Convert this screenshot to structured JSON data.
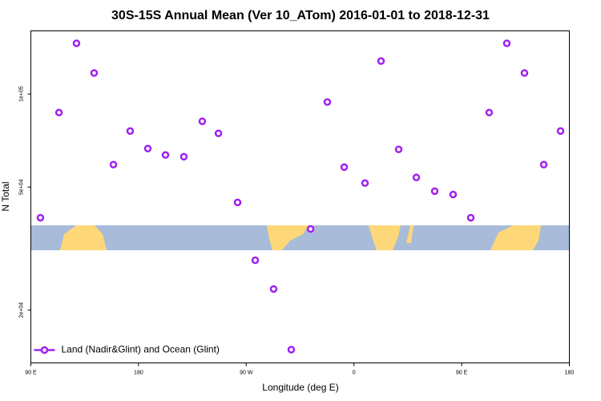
{
  "chart_data": {
    "type": "scatter",
    "title": "30S-15S Annual Mean (Ver 10_ATom)   2016-01-01 to 2018-12-31",
    "x_label": "Longitude (deg E)",
    "y_label": "N Total",
    "log_y": true,
    "legend": "bottom left",
    "xlim": [
      90,
      450
    ],
    "xticks": [
      {
        "value": 90,
        "label": "90 E"
      },
      {
        "value": 162,
        "label": "180"
      },
      {
        "value": 234,
        "label": "90 W"
      },
      {
        "value": 306,
        "label": "0"
      },
      {
        "value": 378,
        "label": "90 E"
      },
      {
        "value": 450,
        "label": "180"
      }
    ],
    "ylim": [
      13500,
      160000
    ],
    "yticks": [
      {
        "value": 20000,
        "label": "2e+04"
      },
      {
        "value": 50000,
        "label": "5e+04"
      },
      {
        "value": 100000,
        "label": "1e+05"
      }
    ],
    "series": [
      {
        "name": "Land (Nadir&Glint) and Ocean (Glint)",
        "color": "#a020f0",
        "x": [
          96.4,
          108.8,
          120.5,
          132.3,
          145.2,
          156.4,
          168.2,
          180,
          192.3,
          204.6,
          215.4,
          228.2,
          240,
          252.3,
          264.1,
          277,
          288.2,
          299.5,
          313.4,
          324.1,
          335.9,
          347.7,
          360,
          372.3,
          384.1,
          396.4,
          408.2,
          420,
          432.9,
          444.1
        ],
        "values": [
          39800,
          87100,
          145800,
          116900,
          59100,
          75900,
          66600,
          63500,
          62700,
          81600,
          74600,
          44600,
          29000,
          23400,
          14900,
          36600,
          94200,
          58000,
          51500,
          127800,
          66200,
          53700,
          48500,
          47300,
          39800,
          87100,
          145800,
          116900,
          59100,
          75900
        ]
      }
    ]
  }
}
